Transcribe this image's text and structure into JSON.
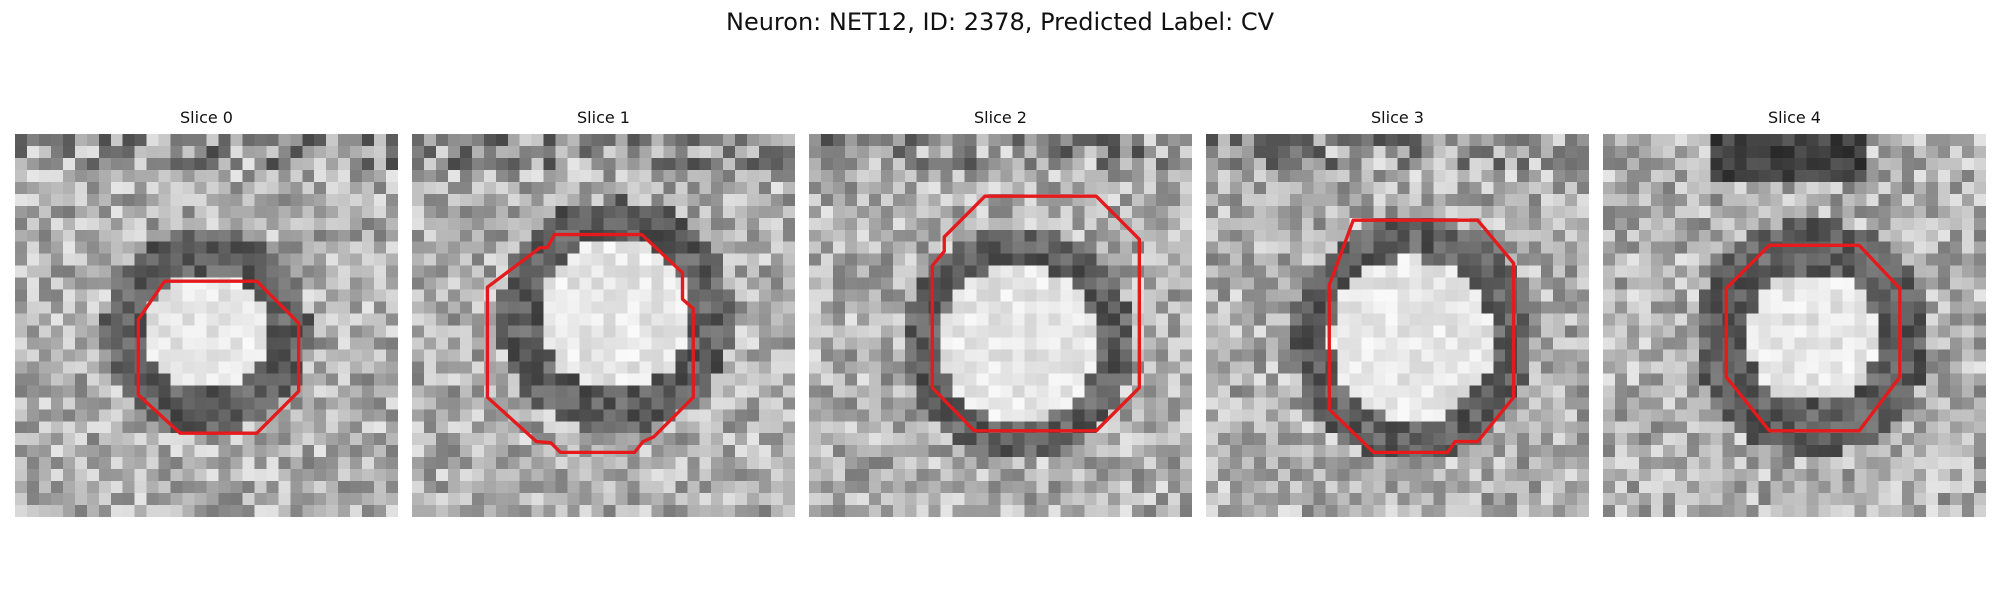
{
  "figure": {
    "title": "Neuron: NET12, ID: 2378, Predicted Label: CV",
    "contour_color": "#e41a1c"
  },
  "panels": [
    {
      "title": "Slice 0"
    },
    {
      "title": "Slice 1"
    },
    {
      "title": "Slice 2"
    },
    {
      "title": "Slice 3"
    },
    {
      "title": "Slice 4"
    }
  ]
}
